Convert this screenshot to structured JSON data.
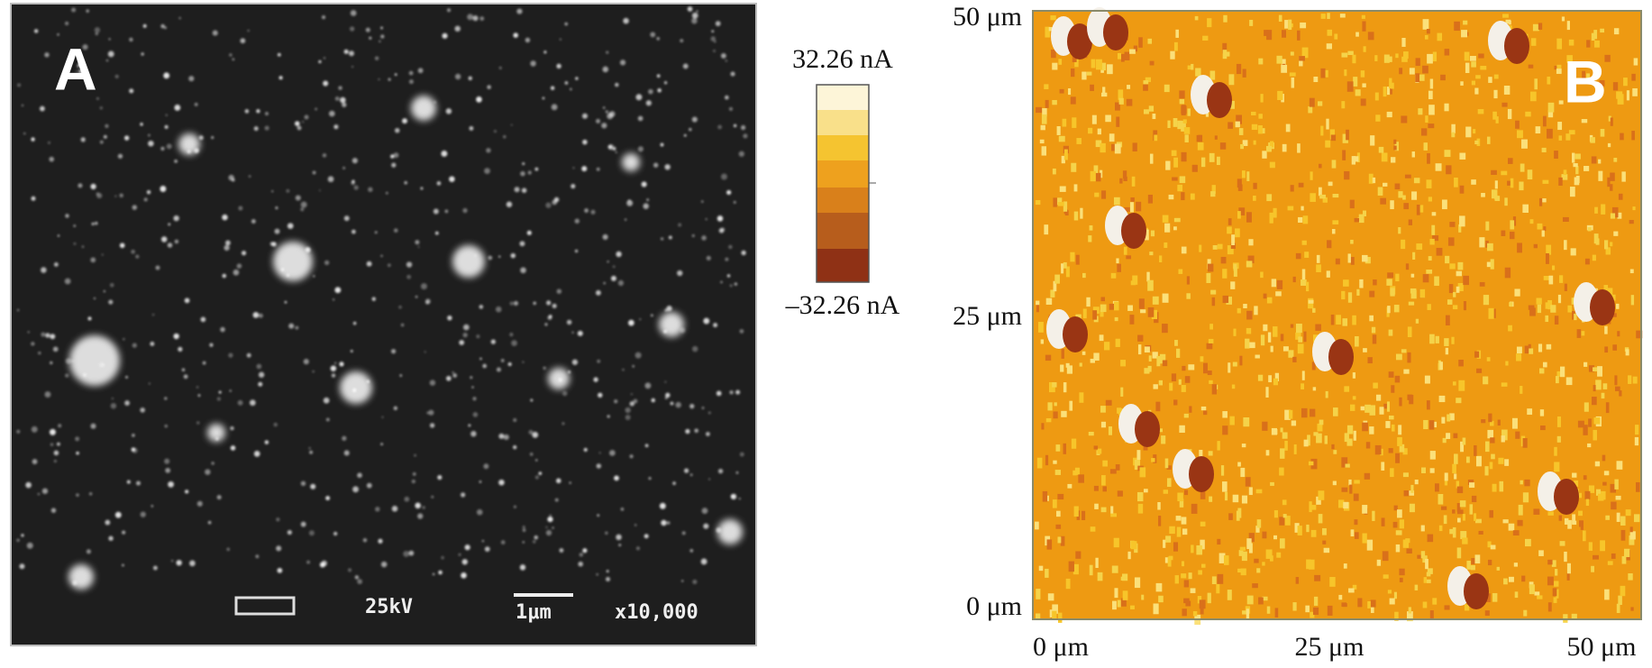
{
  "panel_a": {
    "label": "A",
    "voltage": "25kV",
    "scale_bar": "1μm",
    "magnification": "x10,000"
  },
  "colorbar": {
    "max_label": "32.26 nA",
    "min_label": "–32.26 nA"
  },
  "panel_b": {
    "label": "B",
    "y_labels": [
      "50 μm",
      "25 μm",
      "0 μm"
    ],
    "x_labels": [
      "0 μm",
      "25 μm",
      "50 μm"
    ]
  }
}
